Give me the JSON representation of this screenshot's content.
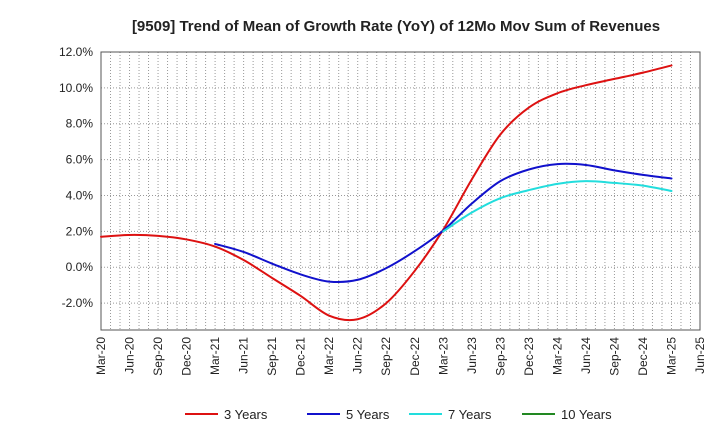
{
  "chart_data": {
    "type": "line",
    "title": "[9509]  Trend of Mean of Growth Rate (YoY) of 12Mo Mov Sum of Revenues",
    "xlabel": "",
    "ylabel": "",
    "ylim": [
      -3.5,
      12.0
    ],
    "yticks": [
      -2.0,
      0.0,
      2.0,
      4.0,
      6.0,
      8.0,
      10.0,
      12.0
    ],
    "ytick_labels": [
      "-2.0%",
      "0.0%",
      "2.0%",
      "4.0%",
      "6.0%",
      "8.0%",
      "10.0%",
      "12.0%"
    ],
    "x_categories": [
      "Mar-20",
      "Jun-20",
      "Sep-20",
      "Dec-20",
      "Mar-21",
      "Jun-21",
      "Sep-21",
      "Dec-21",
      "Mar-22",
      "Jun-22",
      "Sep-22",
      "Dec-22",
      "Mar-23",
      "Jun-23",
      "Sep-23",
      "Dec-23",
      "Mar-24",
      "Jun-24",
      "Sep-24",
      "Dec-24",
      "Mar-25",
      "Jun-25"
    ],
    "grid": true,
    "legend_position": "bottom",
    "series": [
      {
        "name": "3 Years",
        "color": "#dd1111",
        "values": [
          1.7,
          1.8,
          1.75,
          1.55,
          1.15,
          0.4,
          -0.6,
          -1.6,
          -2.7,
          -2.9,
          -2.0,
          -0.2,
          2.1,
          4.9,
          7.4,
          8.9,
          9.7,
          10.15,
          10.5,
          10.85,
          11.25,
          null
        ]
      },
      {
        "name": "5 Years",
        "color": "#1111cc",
        "values": [
          null,
          null,
          null,
          null,
          1.3,
          0.85,
          0.2,
          -0.4,
          -0.8,
          -0.7,
          -0.05,
          0.9,
          2.05,
          3.55,
          4.8,
          5.45,
          5.75,
          5.7,
          5.4,
          5.15,
          4.95,
          null
        ]
      },
      {
        "name": "7 Years",
        "color": "#22dddd",
        "values": [
          null,
          null,
          null,
          null,
          null,
          null,
          null,
          null,
          null,
          null,
          null,
          null,
          2.0,
          3.05,
          3.85,
          4.3,
          4.65,
          4.8,
          4.7,
          4.55,
          4.25,
          null
        ]
      },
      {
        "name": "10 Years",
        "color": "#228822",
        "values": [
          null,
          null,
          null,
          null,
          null,
          null,
          null,
          null,
          null,
          null,
          null,
          null,
          null,
          null,
          null,
          null,
          null,
          null,
          null,
          null,
          null,
          null
        ]
      }
    ]
  }
}
